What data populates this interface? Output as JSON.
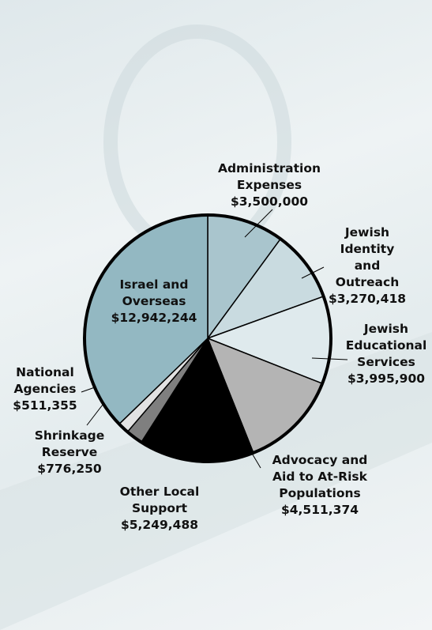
{
  "chart_data": {
    "type": "pie",
    "categories": [
      "Administration\nExpenses",
      "Jewish Identity\nand Outreach",
      "Jewish\nEducational\nServices",
      "Advocacy and\nAid to At-Risk\nPopulations",
      "Other Local\nSupport",
      "Shrinkage\nReserve",
      "National\nAgencies",
      "Israel and\nOverseas"
    ],
    "values": [
      3500000,
      3270418,
      3995900,
      4511374,
      5249488,
      776250,
      511355,
      12942244
    ],
    "value_labels": [
      "$3,500,000",
      "$3,270,418",
      "$3,995,900",
      "$4,511,374",
      "$5,249,488",
      "$776,250",
      "$511,355",
      "$12,942,244"
    ],
    "colors": [
      "#a9c5cd",
      "#c9dbe0",
      "#dfeaed",
      "#b4b4b4",
      "#000000",
      "#7f7f7f",
      "#e2e2e2",
      "#93b8c2"
    ]
  }
}
